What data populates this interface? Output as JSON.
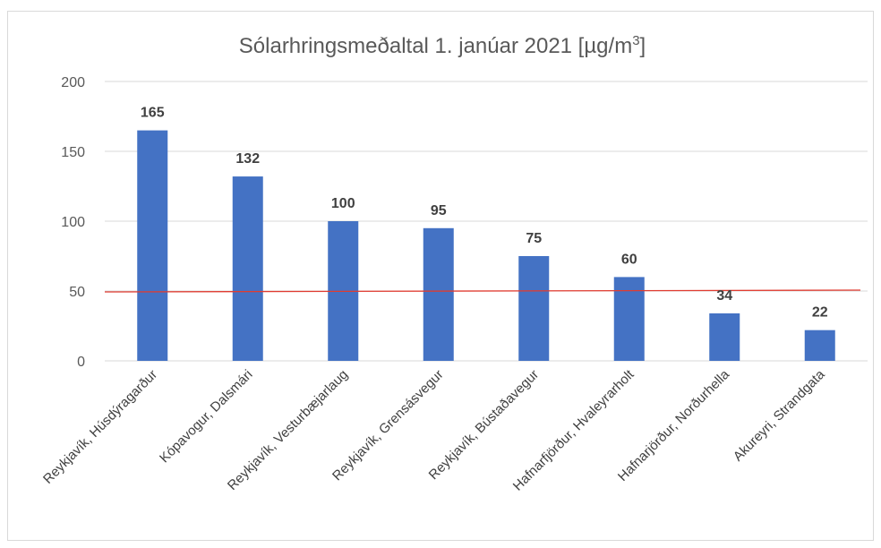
{
  "chart_data": {
    "type": "bar",
    "title": "Sólarhringsmeðaltal 1. janúar 2021 [µg/m",
    "title_superscript": "3",
    "title_suffix": "]",
    "categories": [
      "Reykjavík, Húsdýragarður",
      "Kópavogur, Dalsmári",
      "Reykjavík, Vesturbæjarlaug",
      "Reykjavík, Grensásvegur",
      "Reykjavík, Bústaðavegur",
      "Hafnarfjörður, Hvaleyrarholt",
      "Hafnarjörður, Norðurhella",
      "Akureyri, Strandgata"
    ],
    "values": [
      165,
      132,
      100,
      95,
      75,
      60,
      34,
      22
    ],
    "ylim": [
      0,
      200
    ],
    "yticks": [
      0,
      50,
      100,
      150,
      200
    ],
    "reference_line": {
      "value": 50,
      "color": "#e03c31"
    },
    "bar_color": "#4472c4",
    "grid": true,
    "data_labels": true
  }
}
